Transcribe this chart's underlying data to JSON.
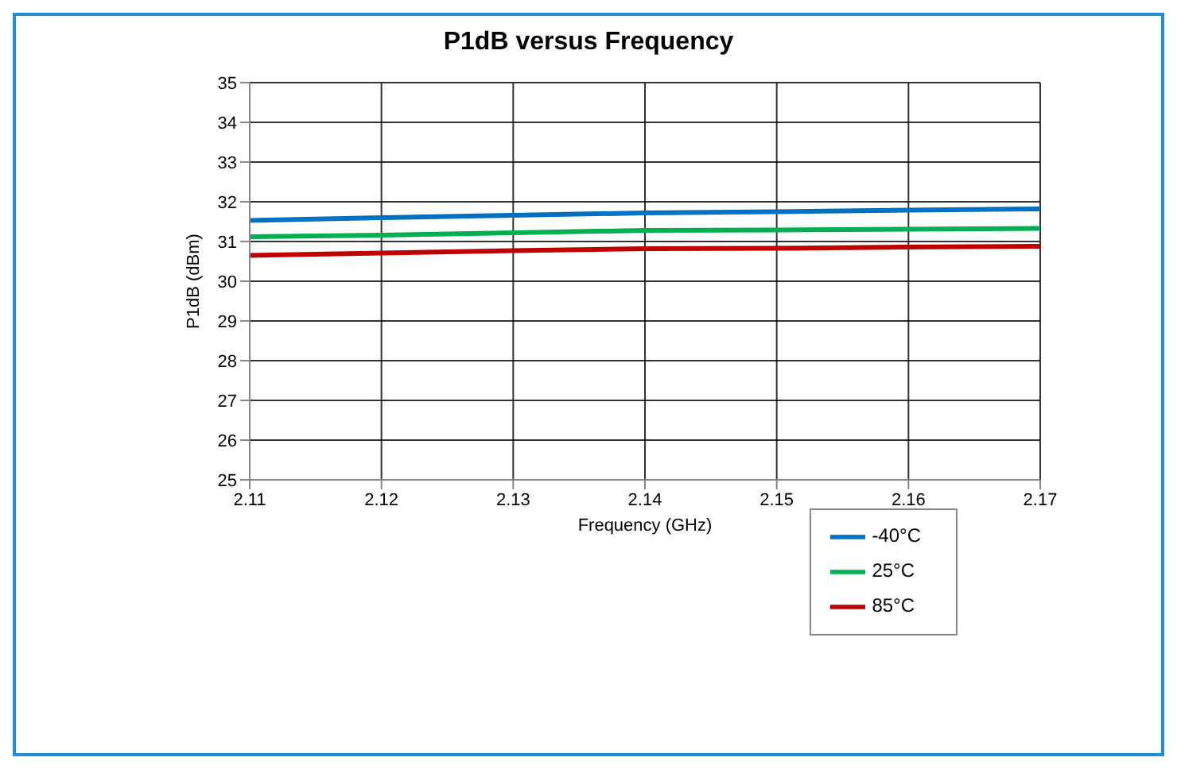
{
  "chart_data": {
    "type": "line",
    "title": "P1dB versus Frequency",
    "xlabel": "Frequency (GHz)",
    "ylabel": "P1dB (dBm)",
    "x": [
      2.11,
      2.12,
      2.13,
      2.14,
      2.15,
      2.16,
      2.17
    ],
    "series": [
      {
        "name": "25°C",
        "color": "#00b050",
        "values": [
          31.12,
          31.16,
          31.22,
          31.28,
          31.29,
          31.31,
          31.33
        ]
      },
      {
        "name": "-40°C",
        "color": "#0070c0",
        "values": [
          31.53,
          31.6,
          31.66,
          31.72,
          31.75,
          31.79,
          31.82
        ]
      },
      {
        "name": "85°C",
        "color": "#c00000",
        "values": [
          30.65,
          30.71,
          30.77,
          30.82,
          30.83,
          30.86,
          30.88
        ]
      }
    ],
    "xlim": [
      2.11,
      2.17
    ],
    "xticks": [
      2.11,
      2.12,
      2.13,
      2.14,
      2.15,
      2.16,
      2.17
    ],
    "ylim": [
      25,
      35
    ],
    "yticks": [
      25,
      26,
      27,
      28,
      29,
      30,
      31,
      32,
      33,
      34,
      35
    ],
    "grid": true,
    "legend": "bottom right",
    "marker": "none",
    "line_style": "solid"
  }
}
